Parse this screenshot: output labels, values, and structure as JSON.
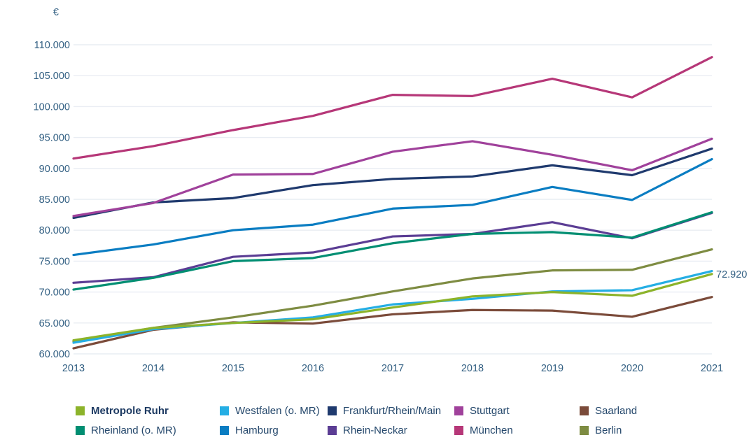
{
  "chart_data": {
    "type": "line",
    "title": "",
    "ylabel": "€",
    "xlabel": "",
    "x": [
      2013,
      2014,
      2015,
      2016,
      2017,
      2018,
      2019,
      2020,
      2021
    ],
    "ylim": [
      60000,
      110000
    ],
    "y_tick_step": 5000,
    "y_tick_format": "de-thousands-dot",
    "grid": true,
    "legend_position": "bottom",
    "series": [
      {
        "name": "Metropole Ruhr",
        "color": "#8cb32a",
        "bold": true,
        "values": [
          62200,
          64200,
          65000,
          65600,
          67500,
          69300,
          70000,
          69400,
          72920
        ]
      },
      {
        "name": "Westfalen (o. MR)",
        "color": "#25aee4",
        "values": [
          61800,
          64000,
          65000,
          65900,
          68000,
          68900,
          70100,
          70300,
          73400
        ]
      },
      {
        "name": "Frankfurt/Rhein/Main",
        "color": "#1f3a6e",
        "values": [
          82000,
          84500,
          85200,
          87300,
          88300,
          88700,
          90500,
          88900,
          93200
        ]
      },
      {
        "name": "Stuttgart",
        "color": "#a0419b",
        "values": [
          82300,
          84400,
          89000,
          89100,
          92700,
          94400,
          92200,
          89700,
          94800
        ]
      },
      {
        "name": "Saarland",
        "color": "#7b4b3a",
        "values": [
          60900,
          63900,
          65100,
          64900,
          66400,
          67100,
          67000,
          66000,
          69200
        ]
      },
      {
        "name": "Rheinland (o. MR)",
        "color": "#008e72",
        "values": [
          70400,
          72300,
          75000,
          75500,
          77900,
          79400,
          79700,
          78800,
          82900
        ]
      },
      {
        "name": "Hamburg",
        "color": "#0a7dc2",
        "values": [
          76000,
          77700,
          80000,
          80900,
          83500,
          84100,
          87000,
          84900,
          91500
        ]
      },
      {
        "name": "Rhein-Neckar",
        "color": "#5b3d94",
        "values": [
          71500,
          72400,
          75700,
          76400,
          79000,
          79400,
          81300,
          78700,
          82800
        ]
      },
      {
        "name": "München",
        "color": "#b63778",
        "values": [
          91600,
          93600,
          96200,
          98500,
          101900,
          101700,
          104500,
          101500,
          108000
        ]
      },
      {
        "name": "Berlin",
        "color": "#7e8c42",
        "values": [
          62000,
          64200,
          65900,
          67800,
          70100,
          72200,
          73500,
          73600,
          76900
        ]
      }
    ],
    "annotation": {
      "text": "72.920",
      "series": "Metropole Ruhr",
      "x": 2021,
      "value": 72920
    }
  },
  "axis": {
    "currency_label": "€",
    "x_tick_labels": [
      "2013",
      "2014",
      "2015",
      "2016",
      "2017",
      "2018",
      "2019",
      "2020",
      "2021"
    ],
    "y_tick_labels": [
      "110.000",
      "105.000",
      "100.000",
      "95.000",
      "90.000",
      "85.000",
      "80.000",
      "75.000",
      "70.000",
      "65.000",
      "60.000"
    ]
  },
  "colors": {
    "axis_text": "#336083",
    "legend_text": "#24476b",
    "gridline": "#e9edf3",
    "background": "#ffffff"
  }
}
